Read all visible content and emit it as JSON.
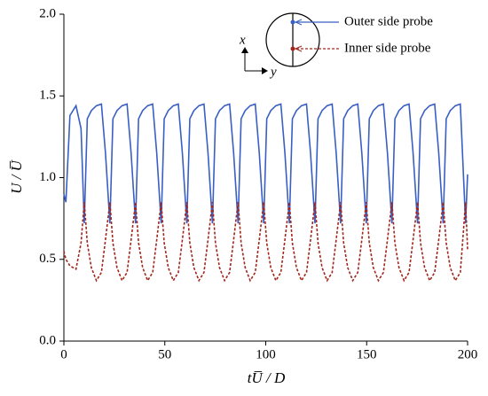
{
  "chart_data": {
    "type": "line",
    "x_label": "tU̅ / D",
    "y_label": "U / U̅",
    "annotations": [
      "x",
      "y"
    ],
    "xlim": [
      0,
      200
    ],
    "xticks": [
      0,
      50,
      100,
      150,
      200
    ],
    "ylim": [
      0,
      2
    ],
    "yticks": [
      {
        "value": 0,
        "label": "0.0"
      },
      {
        "value": 0.5,
        "label": "0.5"
      },
      {
        "value": 1,
        "label": "1.0"
      },
      {
        "value": 1.5,
        "label": "1.5"
      },
      {
        "value": 2,
        "label": "2.0"
      }
    ],
    "x": [
      0,
      1,
      3,
      6,
      8.5,
      10.1,
      11.6,
      13.6,
      16.1,
      18.6,
      20.6,
      22.8,
      24.3,
      26.3,
      28.8,
      31.3,
      33.3,
      35.5,
      37,
      39,
      41.5,
      44,
      46,
      48.2,
      49.7,
      51.7,
      54.2,
      56.7,
      58.7,
      60.9,
      62.4,
      64.4,
      66.9,
      69.4,
      71.4,
      73.6,
      75.1,
      77.1,
      79.6,
      82.1,
      84.1,
      86.3,
      87.8,
      89.8,
      92.3,
      94.8,
      96.8,
      99,
      100.5,
      102.5,
      105,
      107.5,
      109.5,
      111.7,
      113.2,
      115.2,
      117.7,
      120.2,
      122.2,
      124.4,
      125.9,
      127.9,
      130.4,
      132.9,
      134.9,
      137.1,
      138.6,
      140.6,
      143.1,
      145.6,
      147.6,
      149.8,
      151.3,
      153.3,
      155.8,
      158.3,
      160.3,
      162.5,
      164,
      166,
      168.5,
      171,
      173,
      175.2,
      176.7,
      178.7,
      181.2,
      183.7,
      185.7,
      187.9,
      189.4,
      191.4,
      193.9,
      196.4,
      199,
      200
    ],
    "series": [
      {
        "name": "Outer side probe",
        "color": "#3a5fc4",
        "dash": false,
        "values": [
          0.9,
          0.85,
          1.38,
          1.44,
          1.3,
          0.72,
          1.36,
          1.41,
          1.44,
          1.45,
          1.15,
          0.72,
          1.36,
          1.41,
          1.44,
          1.45,
          1.15,
          0.72,
          1.36,
          1.41,
          1.44,
          1.45,
          1.15,
          0.72,
          1.36,
          1.41,
          1.44,
          1.45,
          1.15,
          0.72,
          1.36,
          1.41,
          1.44,
          1.45,
          1.15,
          0.72,
          1.36,
          1.41,
          1.44,
          1.45,
          1.15,
          0.72,
          1.36,
          1.41,
          1.44,
          1.45,
          1.15,
          0.72,
          1.36,
          1.41,
          1.44,
          1.45,
          1.15,
          0.72,
          1.36,
          1.41,
          1.44,
          1.45,
          1.15,
          0.72,
          1.36,
          1.41,
          1.44,
          1.45,
          1.15,
          0.72,
          1.36,
          1.41,
          1.44,
          1.45,
          1.15,
          0.72,
          1.36,
          1.41,
          1.44,
          1.45,
          1.15,
          0.72,
          1.36,
          1.41,
          1.44,
          1.45,
          1.15,
          0.72,
          1.36,
          1.41,
          1.44,
          1.45,
          1.15,
          0.72,
          1.36,
          1.41,
          1.44,
          1.45,
          0.72,
          1.02
        ]
      },
      {
        "name": "Inner side probe",
        "color": "#a3261c",
        "dash": true,
        "values": [
          0.55,
          0.5,
          0.46,
          0.44,
          0.6,
          0.85,
          0.6,
          0.45,
          0.37,
          0.42,
          0.62,
          0.85,
          0.6,
          0.45,
          0.37,
          0.42,
          0.62,
          0.85,
          0.6,
          0.45,
          0.37,
          0.42,
          0.62,
          0.85,
          0.6,
          0.45,
          0.37,
          0.42,
          0.62,
          0.85,
          0.6,
          0.45,
          0.37,
          0.42,
          0.62,
          0.85,
          0.6,
          0.45,
          0.37,
          0.42,
          0.62,
          0.85,
          0.6,
          0.45,
          0.37,
          0.42,
          0.62,
          0.85,
          0.6,
          0.45,
          0.37,
          0.42,
          0.62,
          0.85,
          0.6,
          0.45,
          0.37,
          0.42,
          0.62,
          0.85,
          0.6,
          0.45,
          0.37,
          0.42,
          0.62,
          0.85,
          0.6,
          0.45,
          0.37,
          0.42,
          0.62,
          0.85,
          0.6,
          0.45,
          0.37,
          0.42,
          0.62,
          0.85,
          0.6,
          0.45,
          0.37,
          0.42,
          0.62,
          0.85,
          0.6,
          0.45,
          0.37,
          0.42,
          0.62,
          0.85,
          0.6,
          0.45,
          0.37,
          0.42,
          0.85,
          0.56
        ]
      }
    ]
  }
}
